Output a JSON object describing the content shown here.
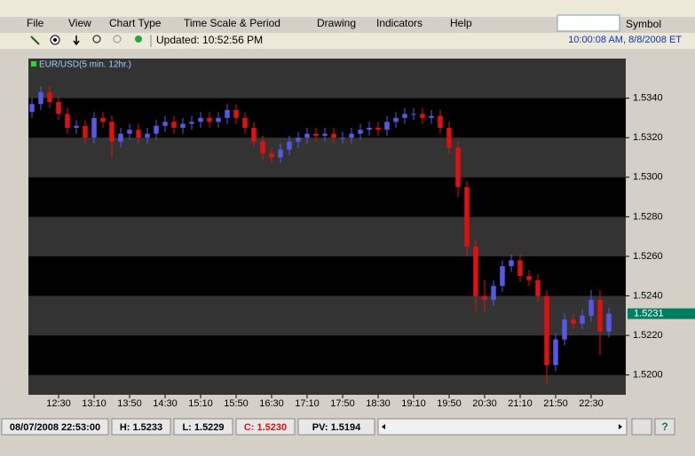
{
  "menu": {
    "items": [
      "File",
      "View",
      "Chart Type",
      "Time Scale & Period",
      "Drawing",
      "Indicators",
      "Help"
    ],
    "symbol_label": "Symbol"
  },
  "toolbar": {
    "updated": "Updated: 10:52:56 PM",
    "clock": "10:00:08 AM, 8/8/2008 ET"
  },
  "chart_data": {
    "type": "candlestick",
    "title": "EUR/USD(5 min. 12hr.)",
    "up_color": "#5858e8",
    "down_color": "#e01010",
    "band_colors": [
      "#000000",
      "#333333"
    ],
    "x": [
      720,
      730,
      740,
      750,
      760,
      770,
      780,
      790,
      800,
      810,
      820,
      830,
      840,
      850,
      860,
      870,
      880,
      890,
      900,
      910,
      920,
      930,
      940,
      950,
      960,
      970,
      980,
      990,
      1000,
      1010,
      1020,
      1030,
      1040,
      1050,
      1060,
      1070,
      1080,
      1090,
      1100,
      1110,
      1120,
      1130,
      1140,
      1150,
      1160,
      1170,
      1180,
      1190,
      1200,
      1210,
      1220,
      1230,
      1240,
      1250,
      1260,
      1270,
      1280,
      1290,
      1300,
      1310,
      1320,
      1330,
      1340,
      1350,
      1360,
      1370
    ],
    "open": [
      1.5333,
      1.5337,
      1.5343,
      1.5338,
      1.5332,
      1.5325,
      1.5326,
      1.532,
      1.533,
      1.5328,
      1.5318,
      1.5322,
      1.5324,
      1.532,
      1.5322,
      1.5326,
      1.5328,
      1.5325,
      1.5327,
      1.5328,
      1.533,
      1.5328,
      1.533,
      1.5334,
      1.533,
      1.5325,
      1.5318,
      1.5312,
      1.531,
      1.5314,
      1.5318,
      1.532,
      1.5322,
      1.5321,
      1.5322,
      1.532,
      1.532,
      1.5322,
      1.5324,
      1.5325,
      1.5324,
      1.5328,
      1.533,
      1.5332,
      1.5332,
      1.533,
      1.5331,
      1.5325,
      1.5315,
      1.5295,
      1.5265,
      1.524,
      1.5238,
      1.5245,
      1.5255,
      1.5258,
      1.525,
      1.5248,
      1.524,
      1.5205,
      1.5218,
      1.5228,
      1.5226,
      1.523,
      1.5238,
      1.5222
    ],
    "high": [
      1.534,
      1.5346,
      1.5346,
      1.5341,
      1.5335,
      1.5329,
      1.5329,
      1.5333,
      1.5333,
      1.5331,
      1.5325,
      1.5327,
      1.5327,
      1.5325,
      1.5329,
      1.5331,
      1.5331,
      1.533,
      1.5331,
      1.5333,
      1.5333,
      1.5333,
      1.5337,
      1.5337,
      1.5333,
      1.5328,
      1.5321,
      1.5315,
      1.5317,
      1.5321,
      1.5323,
      1.5325,
      1.5325,
      1.5325,
      1.5325,
      1.5323,
      1.5325,
      1.5327,
      1.5328,
      1.5328,
      1.5331,
      1.5333,
      1.5335,
      1.5335,
      1.5335,
      1.5334,
      1.5334,
      1.5328,
      1.5318,
      1.5298,
      1.5268,
      1.5248,
      1.5248,
      1.5258,
      1.5261,
      1.5261,
      1.5253,
      1.5251,
      1.5243,
      1.5221,
      1.5231,
      1.5231,
      1.5233,
      1.5243,
      1.5243,
      1.5234
    ],
    "low": [
      1.533,
      1.5334,
      1.5335,
      1.5329,
      1.5322,
      1.5322,
      1.5317,
      1.5317,
      1.5325,
      1.531,
      1.5315,
      1.5319,
      1.5317,
      1.5317,
      1.5319,
      1.5323,
      1.5322,
      1.5322,
      1.5324,
      1.5325,
      1.5325,
      1.5325,
      1.5327,
      1.5327,
      1.5322,
      1.5315,
      1.5309,
      1.5307,
      1.5307,
      1.5311,
      1.5315,
      1.5317,
      1.5318,
      1.5318,
      1.5317,
      1.5317,
      1.5317,
      1.5319,
      1.5321,
      1.5321,
      1.5321,
      1.5325,
      1.5327,
      1.5329,
      1.5327,
      1.5327,
      1.5322,
      1.5312,
      1.529,
      1.526,
      1.5232,
      1.5232,
      1.5235,
      1.5242,
      1.5252,
      1.5247,
      1.5245,
      1.5237,
      1.5195,
      1.5202,
      1.5215,
      1.5223,
      1.5223,
      1.5227,
      1.521,
      1.5219
    ],
    "close": [
      1.5337,
      1.5343,
      1.5338,
      1.5332,
      1.5325,
      1.5326,
      1.532,
      1.533,
      1.5328,
      1.5318,
      1.5322,
      1.5324,
      1.532,
      1.5322,
      1.5326,
      1.5328,
      1.5325,
      1.5327,
      1.5328,
      1.533,
      1.5328,
      1.533,
      1.5334,
      1.533,
      1.5325,
      1.5318,
      1.5312,
      1.531,
      1.5314,
      1.5318,
      1.532,
      1.5322,
      1.5321,
      1.5322,
      1.532,
      1.532,
      1.5322,
      1.5324,
      1.5325,
      1.5324,
      1.5328,
      1.533,
      1.5332,
      1.5332,
      1.533,
      1.5331,
      1.5325,
      1.5315,
      1.5295,
      1.5265,
      1.524,
      1.5238,
      1.5245,
      1.5255,
      1.5258,
      1.525,
      1.5248,
      1.524,
      1.5205,
      1.5218,
      1.5228,
      1.5226,
      1.523,
      1.5238,
      1.5222,
      1.5231
    ],
    "xlim": [
      716,
      1389
    ],
    "xticks": [
      {
        "value": 750,
        "label": "12:30"
      },
      {
        "value": 790,
        "label": "13:10"
      },
      {
        "value": 830,
        "label": "13:50"
      },
      {
        "value": 870,
        "label": "14:30"
      },
      {
        "value": 910,
        "label": "15:10"
      },
      {
        "value": 950,
        "label": "15:50"
      },
      {
        "value": 990,
        "label": "16:30"
      },
      {
        "value": 1030,
        "label": "17:10"
      },
      {
        "value": 1070,
        "label": "17:50"
      },
      {
        "value": 1110,
        "label": "18:30"
      },
      {
        "value": 1150,
        "label": "19:10"
      },
      {
        "value": 1190,
        "label": "19:50"
      },
      {
        "value": 1230,
        "label": "20:30"
      },
      {
        "value": 1270,
        "label": "21:10"
      },
      {
        "value": 1310,
        "label": "21:50"
      },
      {
        "value": 1350,
        "label": "22:30"
      }
    ],
    "ylim": [
      1.519,
      1.536
    ],
    "yticks": [
      {
        "value": 1.52,
        "label": "1.5200"
      },
      {
        "value": 1.522,
        "label": "1.5220"
      },
      {
        "value": 1.524,
        "label": "1.5240"
      },
      {
        "value": 1.526,
        "label": "1.5260"
      },
      {
        "value": 1.528,
        "label": "1.5280"
      },
      {
        "value": 1.53,
        "label": "1.5300"
      },
      {
        "value": 1.532,
        "label": "1.5320"
      },
      {
        "value": 1.534,
        "label": "1.5340"
      }
    ],
    "last_price": 1.5231,
    "last_price_color": "#007f5f"
  },
  "status_bar": {
    "time": "08/07/2008 22:53:00",
    "high": "H: 1.5233",
    "low": "L: 1.5229",
    "close": "C: 1.5230",
    "pv": "PV: 1.5194"
  }
}
